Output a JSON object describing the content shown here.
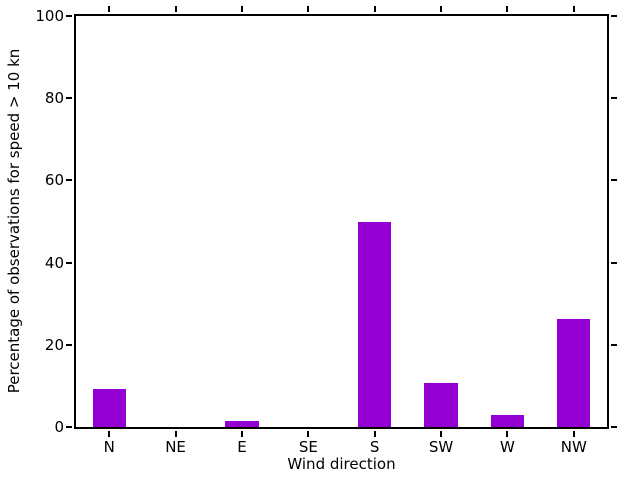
{
  "chart_data": {
    "type": "bar",
    "title": "",
    "categories": [
      "N",
      "NE",
      "E",
      "SE",
      "S",
      "SW",
      "W",
      "NW"
    ],
    "values": [
      9.3,
      0,
      1.5,
      0,
      50,
      10.6,
      2.9,
      26.3
    ],
    "xlabel": "Wind direction",
    "ylabel": "Percentage of observations for speed > 10 kn",
    "ylim": [
      0,
      100
    ],
    "yticks": [
      0,
      20,
      40,
      60,
      80,
      100
    ],
    "bar_color": "#9400d3",
    "axis_color": "#000000",
    "background_color": "#ffffff",
    "grid": false,
    "legend": "none",
    "bar_width_fraction": 0.5,
    "tick_direction": "out",
    "ticks_on_all_sides": true
  }
}
